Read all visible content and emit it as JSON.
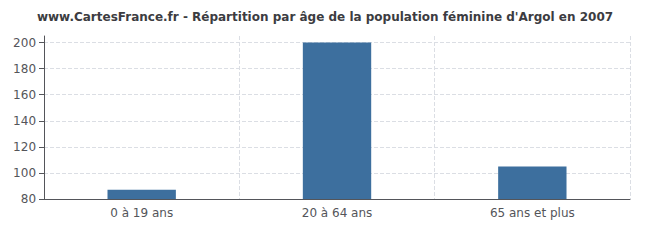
{
  "chart_data": {
    "type": "bar",
    "title": "www.CartesFrance.fr - Répartition par âge de la population féminine d'Argol en 2007",
    "categories": [
      "0 à 19 ans",
      "20 à 64 ans",
      "65 ans et plus"
    ],
    "values": [
      87,
      200,
      105
    ],
    "color": "#3d6f9e",
    "ylim": [
      80,
      205
    ],
    "yticks": [
      80,
      100,
      120,
      140,
      160,
      180,
      200
    ],
    "grid": true
  }
}
